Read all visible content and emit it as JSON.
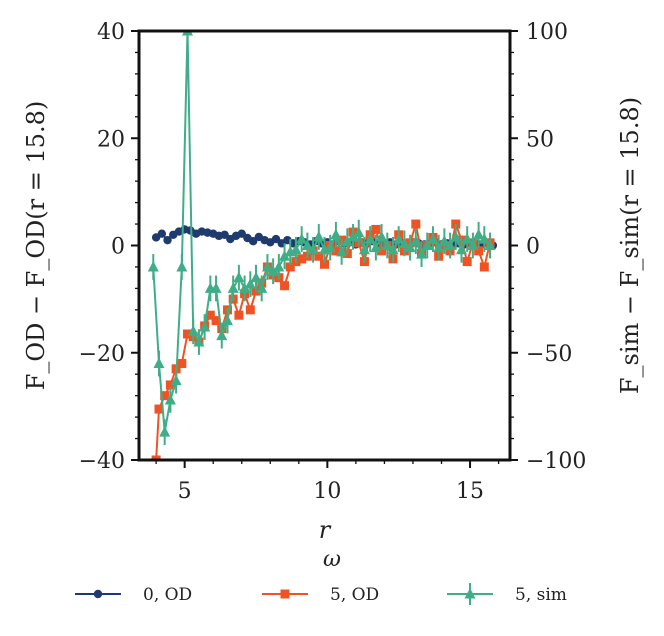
{
  "chart_data": {
    "type": "line",
    "xlabel": "r",
    "ylabel_left": "F_OD − F_OD(r = 15.8)",
    "ylabel_right": "F_sim − F_sim(r = 15.8)",
    "xlim": [
      3.4,
      16.4
    ],
    "ylim_left": [
      -40,
      40
    ],
    "ylim_right": [
      -100,
      100
    ],
    "x_ticks": [
      5,
      10,
      15
    ],
    "y_ticks_left": [
      -40,
      -20,
      0,
      20,
      40
    ],
    "y_ticks_right": [
      -100,
      -50,
      0,
      50,
      100
    ],
    "x_tick_labels": [
      "5",
      "10",
      "15"
    ],
    "y_tick_labels_left": [
      "−40",
      "−20",
      "0",
      "20",
      "40"
    ],
    "y_tick_labels_right": [
      "−100",
      "−50",
      "0",
      "50",
      "100"
    ],
    "legend_title": "ω",
    "legend_labels": [
      "0,  OD",
      "5,  OD",
      "5,  sim"
    ],
    "series": [
      {
        "name": "0,  OD",
        "axis": "left",
        "color": "#1f3a6e",
        "marker": "circle",
        "x": [
          4.0,
          4.2,
          4.4,
          4.6,
          4.8,
          5.0,
          5.2,
          5.4,
          5.6,
          5.8,
          6.0,
          6.2,
          6.4,
          6.6,
          6.8,
          7.0,
          7.2,
          7.4,
          7.6,
          7.8,
          8.0,
          8.2,
          8.4,
          8.6,
          8.8,
          9.0,
          9.2,
          9.4,
          9.6,
          9.8,
          10.0,
          10.2,
          10.4,
          10.6,
          10.8,
          11.0,
          11.2,
          11.4,
          11.6,
          11.8,
          12.0,
          12.2,
          12.4,
          12.6,
          12.8,
          13.0,
          13.2,
          13.4,
          13.6,
          13.8,
          14.0,
          14.2,
          14.4,
          14.6,
          14.8,
          15.0,
          15.2,
          15.4,
          15.6,
          15.8
        ],
        "y": [
          1.5,
          2.2,
          1.0,
          2.0,
          2.6,
          3.0,
          2.8,
          2.2,
          2.6,
          2.4,
          2.2,
          1.8,
          2.0,
          1.2,
          1.8,
          2.2,
          1.4,
          0.8,
          1.6,
          1.0,
          0.6,
          1.2,
          0.4,
          1.0,
          0.4,
          0.8,
          0.6,
          0.2,
          0.8,
          0.4,
          0.6,
          0.2,
          0.8,
          0.4,
          0.6,
          0.2,
          0.6,
          0.4,
          0.8,
          0.2,
          0.4,
          0.6,
          0.2,
          0.4,
          0.2,
          0.6,
          0.4,
          0.2,
          0.4,
          0.6,
          0.2,
          0.4,
          0.3,
          0.4,
          0.2,
          0.4,
          0.3,
          0.2,
          0.4,
          0.0
        ]
      },
      {
        "name": "5,  OD",
        "axis": "left",
        "color": "#f05323",
        "marker": "square",
        "x": [
          4.0,
          4.1,
          4.3,
          4.5,
          4.7,
          4.9,
          5.1,
          5.3,
          5.5,
          5.7,
          5.9,
          6.1,
          6.3,
          6.5,
          6.7,
          6.9,
          7.1,
          7.3,
          7.5,
          7.7,
          7.9,
          8.1,
          8.3,
          8.5,
          8.7,
          8.9,
          9.1,
          9.3,
          9.5,
          9.7,
          9.9,
          10.1,
          10.3,
          10.5,
          10.7,
          10.9,
          11.1,
          11.3,
          11.5,
          11.7,
          11.9,
          12.1,
          12.3,
          12.5,
          12.7,
          12.9,
          13.1,
          13.3,
          13.5,
          13.7,
          13.9,
          14.1,
          14.3,
          14.5,
          14.7,
          14.9,
          15.1,
          15.3,
          15.5,
          15.7
        ],
        "y": [
          -40.0,
          -30.5,
          -28.0,
          -26.0,
          -23.0,
          -22.0,
          -16.5,
          -17.0,
          -18.0,
          -15.0,
          -13.0,
          -14.0,
          -15.5,
          -12.0,
          -10.0,
          -13.0,
          -9.0,
          -12.0,
          -8.5,
          -7.0,
          -4.0,
          -5.5,
          -6.0,
          -7.5,
          -4.0,
          -3.0,
          -2.5,
          -2.0,
          -1.0,
          -2.0,
          -3.5,
          0.0,
          -1.0,
          1.0,
          -1.5,
          2.5,
          0.5,
          -3.0,
          2.0,
          3.0,
          -1.0,
          0.0,
          -2.5,
          2.0,
          -1.0,
          0.5,
          4.0,
          -1.5,
          0.0,
          1.5,
          -2.0,
          0.0,
          -1.0,
          4.0,
          1.0,
          -3.0,
          0.5,
          -1.0,
          -4.0,
          0.5
        ]
      },
      {
        "name": "5,  sim",
        "axis": "right",
        "color": "#3fae87",
        "marker": "triangle",
        "x": [
          3.9,
          4.1,
          4.3,
          4.5,
          4.7,
          4.9,
          5.1,
          5.3,
          5.5,
          5.7,
          5.9,
          6.1,
          6.3,
          6.5,
          6.7,
          6.9,
          7.1,
          7.3,
          7.5,
          7.7,
          7.9,
          8.1,
          8.3,
          8.5,
          8.7,
          8.9,
          9.1,
          9.3,
          9.5,
          9.7,
          9.9,
          10.1,
          10.3,
          10.5,
          10.7,
          10.9,
          11.1,
          11.3,
          11.5,
          11.7,
          11.9,
          12.1,
          12.3,
          12.5,
          12.7,
          12.9,
          13.1,
          13.3,
          13.5,
          13.7,
          13.9,
          14.1,
          14.3,
          14.5,
          14.7,
          14.9,
          15.1,
          15.3,
          15.5,
          15.7
        ],
        "y": [
          -10,
          -55,
          -87,
          -72,
          -63,
          -10,
          100,
          -40,
          -45,
          -38,
          -20,
          -20,
          -42,
          -35,
          -20,
          -15,
          -20,
          -18,
          -15,
          -20,
          -10,
          -12,
          -10,
          -5,
          -3,
          -2,
          3,
          0,
          -2,
          4,
          -2,
          -1,
          5,
          -3,
          2,
          4,
          6,
          -2,
          3,
          -1,
          4,
          0,
          -2,
          3,
          1,
          -1,
          2,
          -4,
          0,
          3,
          -1,
          2,
          0,
          4,
          -2,
          3,
          0,
          5,
          3,
          0
        ],
        "yerr": 6
      }
    ]
  }
}
